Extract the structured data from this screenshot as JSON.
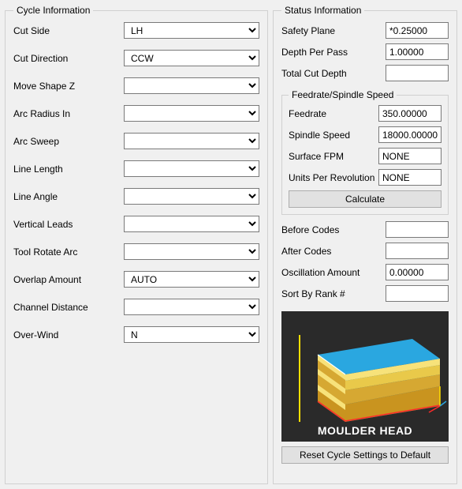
{
  "cycle": {
    "legend": "Cycle Information",
    "fields": [
      {
        "label": "Cut Side",
        "value": "LH"
      },
      {
        "label": "Cut Direction",
        "value": "CCW"
      },
      {
        "label": "Move Shape Z",
        "value": ""
      },
      {
        "label": "Arc Radius In",
        "value": ""
      },
      {
        "label": "Arc Sweep",
        "value": ""
      },
      {
        "label": "Line Length",
        "value": ""
      },
      {
        "label": "Line Angle",
        "value": ""
      },
      {
        "label": "Vertical Leads",
        "value": ""
      },
      {
        "label": "Tool Rotate Arc",
        "value": ""
      },
      {
        "label": "Overlap Amount",
        "value": "AUTO"
      },
      {
        "label": "Channel Distance",
        "value": ""
      },
      {
        "label": "Over-Wind",
        "value": "N"
      }
    ]
  },
  "status": {
    "legend": "Status Information",
    "safety_plane": {
      "label": "Safety Plane",
      "value": "*0.25000"
    },
    "depth_per_pass": {
      "label": "Depth Per Pass",
      "value": "1.00000"
    },
    "total_cut_depth": {
      "label": "Total Cut Depth",
      "value": ""
    },
    "feed_legend": "Feedrate/Spindle Speed",
    "feedrate": {
      "label": "Feedrate",
      "value": "350.00000"
    },
    "spindle_speed": {
      "label": "Spindle Speed",
      "value": "18000.00000"
    },
    "surface_fpm": {
      "label": "Surface FPM",
      "value": "NONE"
    },
    "units_per_rev": {
      "label": "Units Per Revolution",
      "value": "NONE"
    },
    "calculate_label": "Calculate",
    "before_codes": {
      "label": "Before Codes",
      "value": ""
    },
    "after_codes": {
      "label": "After Codes",
      "value": ""
    },
    "oscillation": {
      "label": "Oscillation Amount",
      "value": "0.00000"
    },
    "sort_rank": {
      "label": "Sort By Rank #",
      "value": ""
    },
    "preview_caption": "MOULDER HEAD",
    "reset_label": "Reset Cycle Settings to Default"
  },
  "preview_colors": {
    "bg": "#2a2a2a",
    "top": "#2aa7e0",
    "side": "#1a6fa3",
    "face_light": "#f7e27a",
    "face_dark": "#d6a832",
    "axis_x": "#ff2a2a",
    "axis_y": "#ffe000",
    "axis_z": "#2aa7e0"
  }
}
